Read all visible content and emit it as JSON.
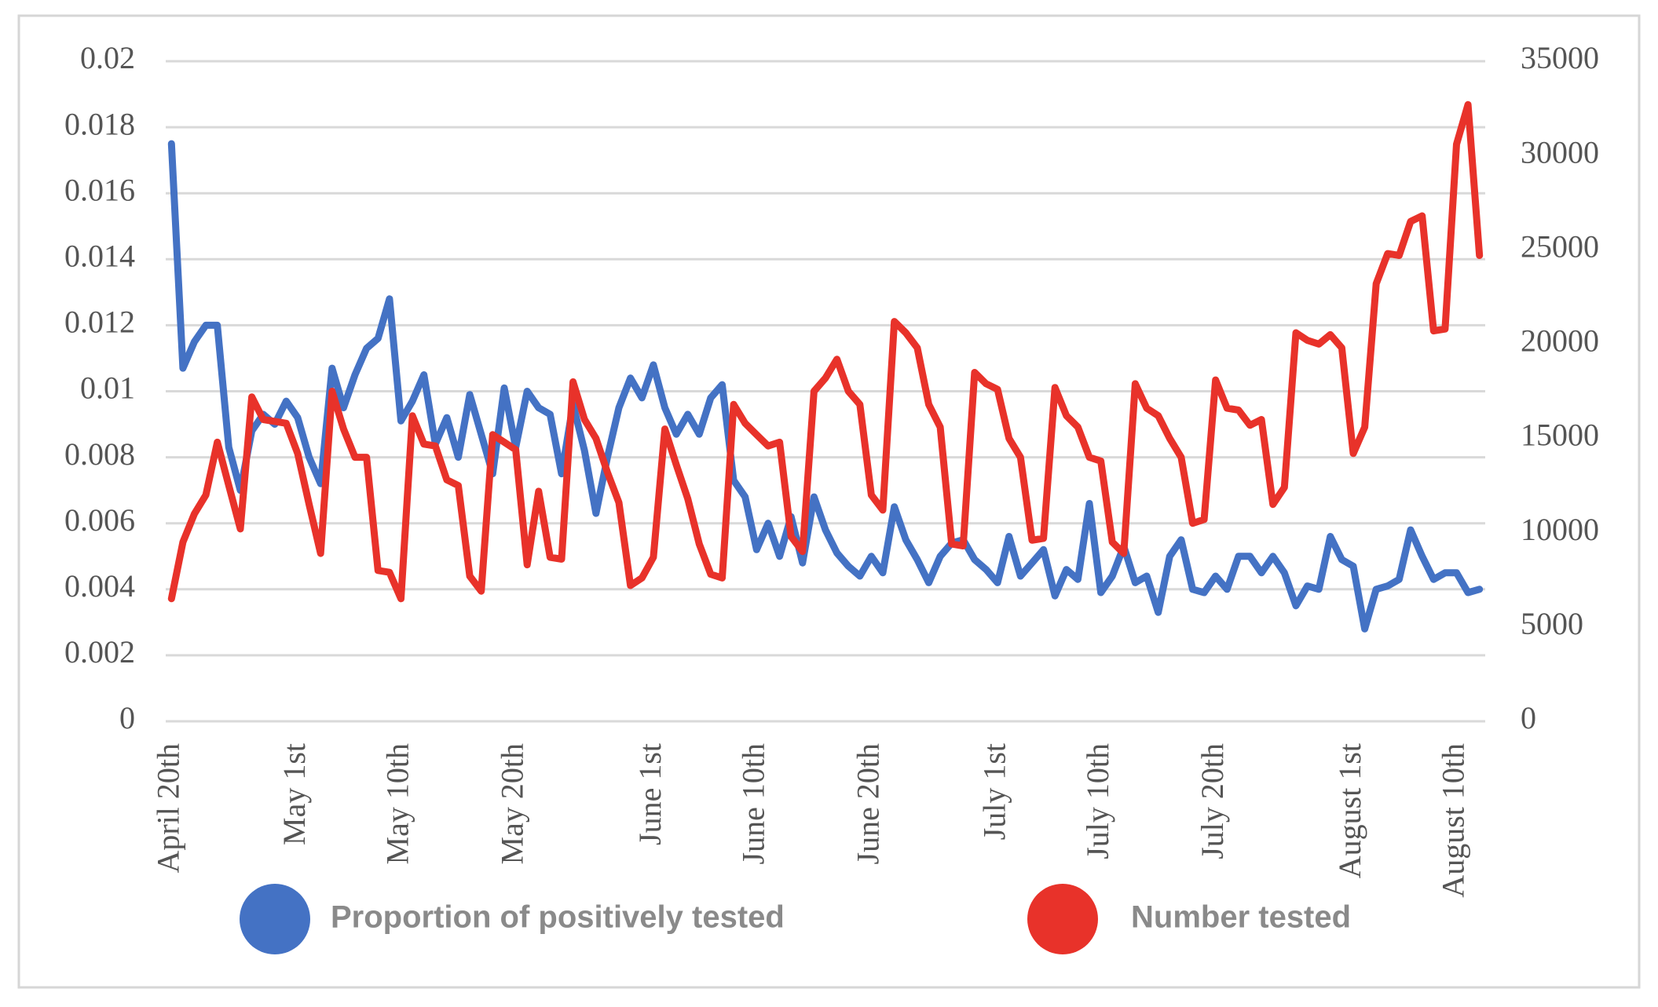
{
  "chart_data": {
    "type": "line",
    "categories": [
      "April 20th",
      null,
      null,
      null,
      null,
      null,
      null,
      null,
      null,
      null,
      null,
      "May 1st",
      null,
      null,
      null,
      null,
      null,
      null,
      null,
      null,
      "May 10th",
      null,
      null,
      null,
      null,
      null,
      null,
      null,
      null,
      null,
      "May 20th",
      null,
      null,
      null,
      null,
      null,
      null,
      null,
      null,
      null,
      null,
      null,
      "June 1st",
      null,
      null,
      null,
      null,
      null,
      null,
      null,
      null,
      "June 10th",
      null,
      null,
      null,
      null,
      null,
      null,
      null,
      null,
      null,
      "June 20th",
      null,
      null,
      null,
      null,
      null,
      null,
      null,
      null,
      null,
      null,
      "July 1st",
      null,
      null,
      null,
      null,
      null,
      null,
      null,
      null,
      "July 10th",
      null,
      null,
      null,
      null,
      null,
      null,
      null,
      null,
      null,
      "July 20th",
      null,
      null,
      null,
      null,
      null,
      null,
      null,
      null,
      null,
      null,
      null,
      "August 1st",
      null,
      null,
      null,
      null,
      null,
      null,
      null,
      null,
      "August 10th",
      null,
      null
    ],
    "series": [
      {
        "name": "Proportion of positively tested",
        "color": "#4472c4",
        "axis": "y",
        "values": [
          0.0175,
          0.0107,
          0.0115,
          0.012,
          0.012,
          0.0083,
          0.007,
          0.0088,
          0.0093,
          0.009,
          0.0097,
          0.0092,
          0.008,
          0.0072,
          0.0107,
          0.0095,
          0.0105,
          0.0113,
          0.0116,
          0.0128,
          0.0091,
          0.0097,
          0.0105,
          0.0084,
          0.0092,
          0.008,
          0.0099,
          0.0087,
          0.0075,
          0.0101,
          0.0083,
          0.01,
          0.0095,
          0.0093,
          0.0075,
          0.0096,
          0.0082,
          0.0063,
          0.008,
          0.0095,
          0.0104,
          0.0098,
          0.0108,
          0.0095,
          0.0087,
          0.0093,
          0.0087,
          0.0098,
          0.0102,
          0.0073,
          0.0068,
          0.0052,
          0.006,
          0.005,
          0.0062,
          0.0048,
          0.0068,
          0.0058,
          0.0051,
          0.0047,
          0.0044,
          0.005,
          0.0045,
          0.0065,
          0.0055,
          0.0049,
          0.0042,
          0.005,
          0.0054,
          0.0055,
          0.0049,
          0.0046,
          0.0042,
          0.0056,
          0.0044,
          0.0048,
          0.0052,
          0.0038,
          0.0046,
          0.0043,
          0.0066,
          0.0039,
          0.0044,
          0.0053,
          0.0042,
          0.0044,
          0.0033,
          0.005,
          0.0055,
          0.004,
          0.0039,
          0.0044,
          0.004,
          0.005,
          0.005,
          0.0045,
          0.005,
          0.0045,
          0.0035,
          0.0041,
          0.004,
          0.0056,
          0.0049,
          0.0047,
          0.0028,
          0.004,
          0.0041,
          0.0043,
          0.0058,
          0.005,
          0.0043,
          0.0045,
          0.0045,
          0.0039,
          0.004
        ]
      },
      {
        "name": "Number tested",
        "color": "#e8322a",
        "axis": "y2",
        "values": [
          6500,
          9500,
          11000,
          12000,
          14800,
          12500,
          10200,
          17200,
          16000,
          15900,
          15800,
          14200,
          11500,
          8900,
          17500,
          15500,
          14000,
          14000,
          8000,
          7900,
          6500,
          16200,
          14700,
          14600,
          12800,
          12500,
          7700,
          6900,
          15200,
          14800,
          14400,
          8300,
          12200,
          8700,
          8600,
          18000,
          16000,
          15000,
          13200,
          11600,
          7200,
          7600,
          8700,
          15500,
          13600,
          11800,
          9400,
          7800,
          7600,
          16800,
          15800,
          15200,
          14600,
          14800,
          9800,
          9000,
          17500,
          18200,
          19200,
          17500,
          16800,
          12000,
          11200,
          21200,
          20600,
          19800,
          16800,
          15600,
          9400,
          9300,
          18500,
          17900,
          17600,
          15000,
          14000,
          9600,
          9700,
          17700,
          16200,
          15600,
          14000,
          13800,
          9500,
          8900,
          17900,
          16600,
          16200,
          15000,
          14000,
          10500,
          10700,
          18100,
          16600,
          16500,
          15700,
          16000,
          11500,
          12400,
          20600,
          20200,
          20000,
          20500,
          19800,
          14200,
          15600,
          23200,
          24800,
          24700,
          26500,
          26800,
          20700,
          20800,
          30600,
          32700,
          24700
        ]
      }
    ],
    "ylim": [
      0,
      0.02
    ],
    "yticks": [
      0,
      0.002,
      0.004,
      0.006,
      0.008,
      0.01,
      0.012,
      0.014,
      0.016,
      0.018,
      0.02
    ],
    "y2lim": [
      0,
      35000
    ],
    "y2ticks": [
      0,
      5000,
      10000,
      15000,
      20000,
      25000,
      30000,
      35000
    ],
    "grid": true
  }
}
